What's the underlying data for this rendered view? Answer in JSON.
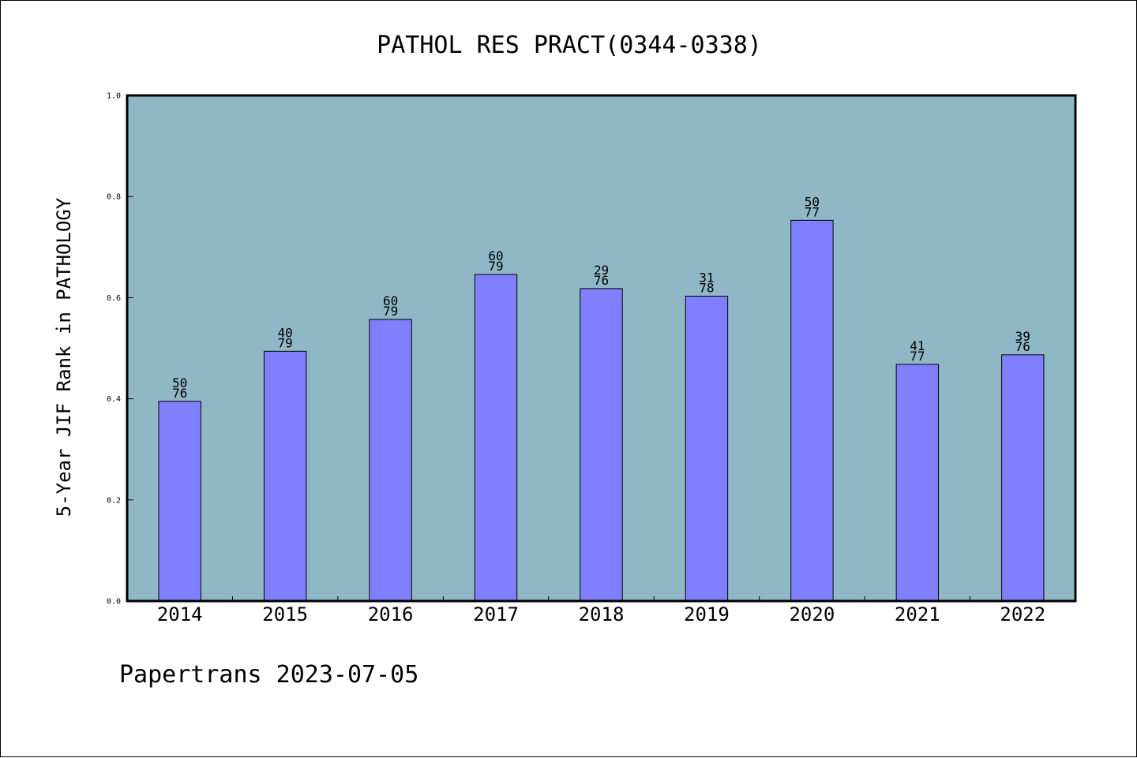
{
  "chart_data": {
    "type": "bar",
    "title": "PATHOL RES PRACT(0344-0338)",
    "ylabel": "5-Year JIF Rank in PATHOLOGY",
    "xlabel": "",
    "ylim": [
      0,
      1.0
    ],
    "yticks": [
      "0.0",
      "0.2",
      "0.4",
      "0.6",
      "0.8",
      "1.0"
    ],
    "categories": [
      "2014",
      "2015",
      "2016",
      "2017",
      "2018",
      "2019",
      "2020",
      "2021",
      "2022"
    ],
    "values": [
      0.395,
      0.494,
      0.557,
      0.646,
      0.618,
      0.603,
      0.753,
      0.468,
      0.487
    ],
    "rank": [
      "50",
      "40",
      "60",
      "60",
      "29",
      "31",
      "50",
      "41",
      "39"
    ],
    "total": [
      "76",
      "79",
      "79",
      "79",
      "76",
      "78",
      "77",
      "77",
      "76"
    ],
    "grid": false,
    "legend": "none"
  },
  "colors": {
    "plot_background": "#8fb7c5",
    "bar_fill": "#8080ff",
    "bar_stroke": "#000000"
  },
  "footer": {
    "text": "Papertrans 2023-07-05"
  }
}
